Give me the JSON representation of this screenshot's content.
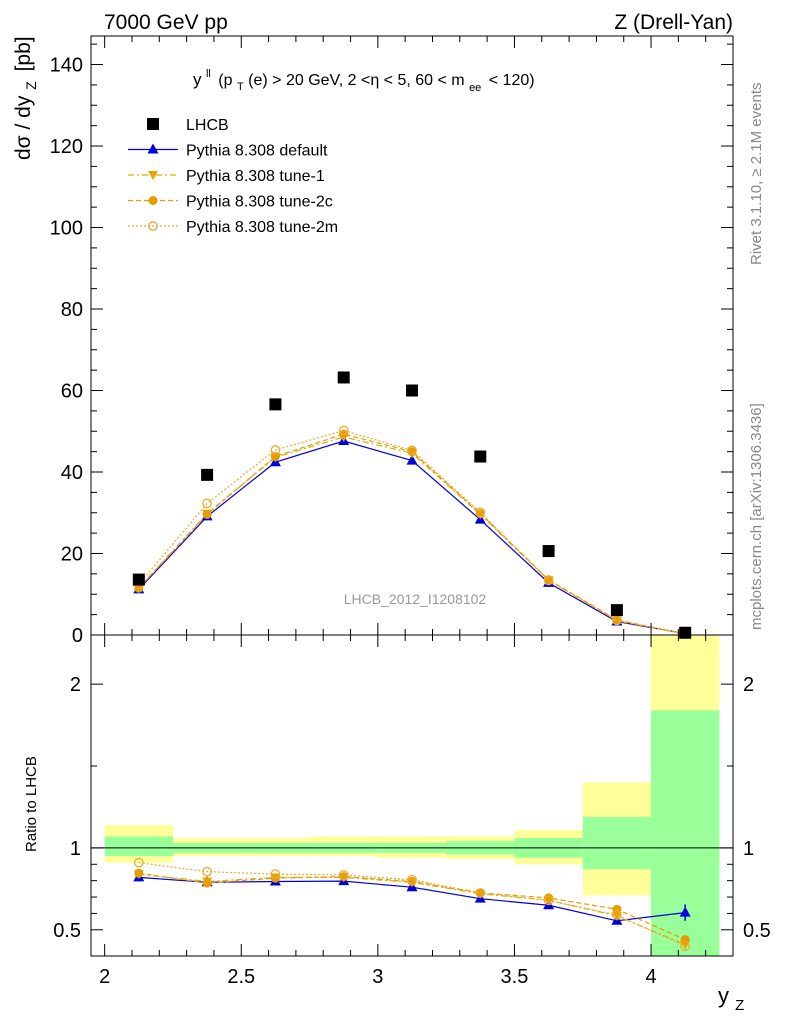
{
  "header": {
    "left": "7000 GeV pp",
    "right": "Z (Drell-Yan)",
    "analysis_tag": "LHCB_2012_I1208102",
    "side_rivet": "Rivet 3.1.10, ≥ 2.1M events",
    "side_mcplots": "mcplots.cern.ch [arXiv:1306.3436]"
  },
  "chart_data": [
    {
      "type": "scatter",
      "panel": "main",
      "title_parts": {
        "lead": "y",
        "lead_sup": "ll",
        "pre": "(p",
        "pt_sub": "T",
        "mid": "(e) > 20 GeV, 2 <η < 5, 60 < m",
        "m_sub": "ee",
        "post": "< 120)"
      },
      "ylabel": "dσ / dy",
      "ylabel_sub": "Z",
      "ylabel_unit": "[pb]",
      "xlim": [
        1.95,
        4.3
      ],
      "ylim": [
        0,
        147
      ],
      "yticks": [
        0,
        20,
        40,
        60,
        80,
        100,
        120,
        140
      ],
      "legend_position": "top-left",
      "x": [
        2.125,
        2.375,
        2.625,
        2.875,
        3.125,
        3.375,
        3.625,
        3.875,
        4.125
      ],
      "series": [
        {
          "name": "LHCB",
          "style": "data",
          "color": "#000000",
          "values": [
            13.6,
            39.3,
            56.6,
            63.2,
            60.0,
            43.8,
            20.6,
            6.1,
            0.55
          ]
        },
        {
          "name": "Pythia 8.308 default",
          "style": "solid",
          "marker": "triangle-up",
          "color": "#0000dd",
          "values": [
            11.2,
            29.1,
            42.4,
            47.6,
            42.8,
            28.3,
            12.8,
            3.3,
            0.35
          ]
        },
        {
          "name": "Pythia 8.308 tune-1",
          "style": "dashdot",
          "marker": "triangle-down",
          "color": "#e6a800",
          "values": [
            11.6,
            29.8,
            43.6,
            48.6,
            44.6,
            29.6,
            13.4,
            3.5,
            0.23
          ]
        },
        {
          "name": "Pythia 8.308 tune-2c",
          "style": "dashed",
          "marker": "circle-filled",
          "color": "#e39f00",
          "values": [
            11.5,
            29.6,
            43.8,
            49.3,
            45.0,
            29.8,
            13.6,
            3.7,
            0.26
          ]
        },
        {
          "name": "Pythia 8.308 tune-2m",
          "style": "dotted",
          "marker": "circle-open",
          "color": "#f0a830",
          "values": [
            12.4,
            32.3,
            45.4,
            50.2,
            45.3,
            30.1,
            13.4,
            3.6,
            0.22
          ]
        }
      ]
    },
    {
      "type": "scatter",
      "panel": "ratio",
      "ylabel": "Ratio to LHCB",
      "xlabel": "y",
      "xlabel_sub": "Z",
      "xlim": [
        1.95,
        4.3
      ],
      "ylim": [
        0.34,
        2.3
      ],
      "xticks": [
        2,
        2.5,
        3,
        3.5,
        4
      ],
      "xtick_labels": [
        "2",
        "2.5",
        "3",
        "3.5",
        "4"
      ],
      "yticks": [
        0.5,
        1,
        2
      ],
      "ytick_labels": [
        "0.5",
        "1",
        "2"
      ],
      "bands": {
        "edges": [
          2.0,
          2.25,
          2.5,
          2.75,
          3.0,
          3.25,
          3.5,
          3.75,
          4.0,
          4.25
        ],
        "inner_color": "#99ff99",
        "outer_color": "#ffff99",
        "inner": [
          [
            0.95,
            1.07
          ],
          [
            0.97,
            1.03
          ],
          [
            0.97,
            1.03
          ],
          [
            0.97,
            1.03
          ],
          [
            0.97,
            1.03
          ],
          [
            0.96,
            1.04
          ],
          [
            0.94,
            1.06
          ],
          [
            0.87,
            1.19
          ],
          [
            0.3,
            1.84
          ]
        ],
        "outer": [
          [
            0.91,
            1.14
          ],
          [
            0.95,
            1.06
          ],
          [
            0.95,
            1.06
          ],
          [
            0.95,
            1.07
          ],
          [
            0.94,
            1.07
          ],
          [
            0.93,
            1.07
          ],
          [
            0.9,
            1.11
          ],
          [
            0.71,
            1.4
          ],
          [
            0.3,
            2.35
          ]
        ]
      },
      "x": [
        2.125,
        2.375,
        2.625,
        2.875,
        3.125,
        3.375,
        3.625,
        3.875,
        4.125
      ],
      "series": [
        {
          "name": "Pythia 8.308 default",
          "style": "solid",
          "marker": "triangle-up",
          "color": "#0000dd",
          "values": [
            0.82,
            0.79,
            0.795,
            0.797,
            0.76,
            0.69,
            0.65,
            0.555,
            0.605
          ],
          "err_last": 0.05
        },
        {
          "name": "Pythia 8.308 tune-1",
          "style": "dashdot",
          "marker": "triangle-down",
          "color": "#e6a800",
          "values": [
            0.84,
            0.795,
            0.82,
            0.82,
            0.79,
            0.72,
            0.68,
            0.585,
            0.41
          ]
        },
        {
          "name": "Pythia 8.308 tune-2c",
          "style": "dashed",
          "marker": "circle-filled",
          "color": "#e39f00",
          "values": [
            0.845,
            0.785,
            0.815,
            0.825,
            0.795,
            0.725,
            0.695,
            0.625,
            0.44
          ]
        },
        {
          "name": "Pythia 8.308 tune-2m",
          "style": "dotted",
          "marker": "circle-open",
          "color": "#f0a830",
          "values": [
            0.91,
            0.855,
            0.84,
            0.835,
            0.805,
            0.725,
            0.68,
            0.59,
            0.4
          ]
        }
      ]
    }
  ]
}
